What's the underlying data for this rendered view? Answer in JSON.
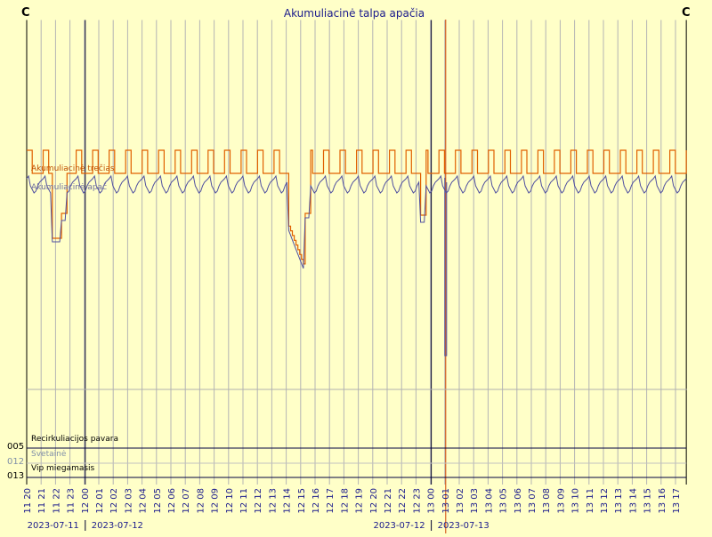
{
  "chart_data": {
    "type": "line",
    "title": "Akumuliacinė talpa apačia",
    "corner_left": "C",
    "corner_right": "C",
    "series": [
      {
        "name": "Akumuliacinė trečias",
        "color": "#e06000"
      },
      {
        "name": "Akumuliacinė apač",
        "color": "#5050a0"
      }
    ],
    "x_ticks": [
      "11 20",
      "11 21",
      "11 22",
      "11 23",
      "12 00",
      "12 01",
      "12 02",
      "12 03",
      "12 04",
      "12 05",
      "12 06",
      "12 07",
      "12 08",
      "12 09",
      "12 10",
      "12 11",
      "12 12",
      "12 13",
      "12 14",
      "12 15",
      "12 16",
      "12 17",
      "12 18",
      "12 19",
      "12 20",
      "12 21",
      "12 22",
      "12 23",
      "13 00",
      "13 01",
      "13 02",
      "13 03",
      "13 04",
      "13 05",
      "13 06",
      "13 07",
      "13 08",
      "13 09",
      "13 10",
      "13 11",
      "13 12",
      "13 13",
      "13 14",
      "13 15",
      "13 16",
      "13 17"
    ],
    "date_labels": [
      {
        "text": "2023-07-11",
        "at": 4
      },
      {
        "text": "2023-07-12",
        "at": 4
      },
      {
        "text": "2023-07-12",
        "at": 28
      },
      {
        "text": "2023-07-13",
        "at": 28
      }
    ],
    "day_boundaries": [
      4,
      28
    ],
    "marker_hour": 29,
    "states": [
      {
        "id": "005",
        "name": "Recirkuliacijos pavara",
        "color": "#000000"
      },
      {
        "id": "012",
        "name": "Svetainė",
        "color": "#7a8aa0"
      },
      {
        "id": "013",
        "name": "Vip miegamasis",
        "color": "#000000"
      }
    ]
  }
}
